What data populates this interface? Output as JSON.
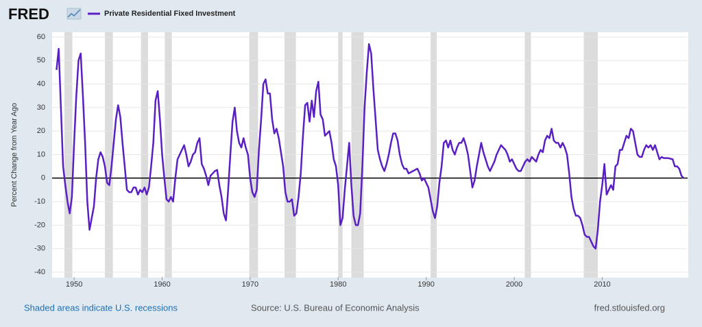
{
  "branding": {
    "logo": "FRED",
    "note": "Shaded areas indicate U.S. recessions",
    "source": "Source: U.S. Bureau of Economic Analysis",
    "url": "fred.stlouisfed.org"
  },
  "chart_data": {
    "type": "line",
    "ylabel": "Percent Change from Year Ago",
    "xlim": [
      1947.5,
      2019.7
    ],
    "xticks": [
      1950,
      1960,
      1970,
      1980,
      1990,
      2000,
      2010
    ],
    "ylim": [
      -40,
      60
    ],
    "yticks": [
      -40,
      -30,
      -20,
      -10,
      0,
      10,
      20,
      30,
      40,
      50,
      60
    ],
    "grid": true,
    "recessions": [
      [
        1948.9,
        1949.8
      ],
      [
        1953.5,
        1954.4
      ],
      [
        1957.6,
        1958.4
      ],
      [
        1960.3,
        1961.1
      ],
      [
        1969.9,
        1970.9
      ],
      [
        1973.9,
        1975.2
      ],
      [
        1980.0,
        1980.5
      ],
      [
        1981.5,
        1982.9
      ],
      [
        1990.5,
        1991.2
      ],
      [
        2001.2,
        2001.9
      ],
      [
        2007.9,
        2009.5
      ]
    ],
    "x": [
      1948.0,
      1948.25,
      1948.5,
      1948.75,
      1949.0,
      1949.25,
      1949.5,
      1949.75,
      1950.0,
      1950.25,
      1950.5,
      1950.75,
      1951.0,
      1951.25,
      1951.5,
      1951.75,
      1952.0,
      1952.25,
      1952.5,
      1952.75,
      1953.0,
      1953.25,
      1953.5,
      1953.75,
      1954.0,
      1954.25,
      1954.5,
      1954.75,
      1955.0,
      1955.25,
      1955.5,
      1955.75,
      1956.0,
      1956.25,
      1956.5,
      1956.75,
      1957.0,
      1957.25,
      1957.5,
      1957.75,
      1958.0,
      1958.25,
      1958.5,
      1958.75,
      1959.0,
      1959.25,
      1959.5,
      1959.75,
      1960.0,
      1960.25,
      1960.5,
      1960.75,
      1961.0,
      1961.25,
      1961.5,
      1961.75,
      1962.0,
      1962.25,
      1962.5,
      1962.75,
      1963.0,
      1963.25,
      1963.5,
      1963.75,
      1964.0,
      1964.25,
      1964.5,
      1964.75,
      1965.0,
      1965.25,
      1965.5,
      1965.75,
      1966.0,
      1966.25,
      1966.5,
      1966.75,
      1967.0,
      1967.25,
      1967.5,
      1967.75,
      1968.0,
      1968.25,
      1968.5,
      1968.75,
      1969.0,
      1969.25,
      1969.5,
      1969.75,
      1970.0,
      1970.25,
      1970.5,
      1970.75,
      1971.0,
      1971.25,
      1971.5,
      1971.75,
      1972.0,
      1972.25,
      1972.5,
      1972.75,
      1973.0,
      1973.25,
      1973.5,
      1973.75,
      1974.0,
      1974.25,
      1974.5,
      1974.75,
      1975.0,
      1975.25,
      1975.5,
      1975.75,
      1976.0,
      1976.25,
      1976.5,
      1976.75,
      1977.0,
      1977.25,
      1977.5,
      1977.75,
      1978.0,
      1978.25,
      1978.5,
      1978.75,
      1979.0,
      1979.25,
      1979.5,
      1979.75,
      1980.0,
      1980.25,
      1980.5,
      1980.75,
      1981.0,
      1981.25,
      1981.5,
      1981.75,
      1982.0,
      1982.25,
      1982.5,
      1982.75,
      1983.0,
      1983.25,
      1983.5,
      1983.75,
      1984.0,
      1984.25,
      1984.5,
      1984.75,
      1985.0,
      1985.25,
      1985.5,
      1985.75,
      1986.0,
      1986.25,
      1986.5,
      1986.75,
      1987.0,
      1987.25,
      1987.5,
      1987.75,
      1988.0,
      1988.5,
      1989.0,
      1989.25,
      1989.5,
      1989.75,
      1990.0,
      1990.25,
      1990.5,
      1990.75,
      1991.0,
      1991.25,
      1991.5,
      1991.75,
      1992.0,
      1992.25,
      1992.5,
      1992.75,
      1993.0,
      1993.25,
      1993.5,
      1993.75,
      1994.0,
      1994.25,
      1994.5,
      1994.75,
      1995.0,
      1995.25,
      1995.5,
      1995.75,
      1996.0,
      1996.25,
      1996.5,
      1996.75,
      1997.0,
      1997.25,
      1997.5,
      1997.75,
      1998.0,
      1998.25,
      1998.5,
      1998.75,
      1999.0,
      1999.25,
      1999.5,
      1999.75,
      2000.0,
      2000.25,
      2000.5,
      2000.75,
      2001.0,
      2001.25,
      2001.5,
      2001.75,
      2002.0,
      2002.25,
      2002.5,
      2002.75,
      2003.0,
      2003.25,
      2003.5,
      2003.75,
      2004.0,
      2004.25,
      2004.5,
      2004.75,
      2005.0,
      2005.25,
      2005.5,
      2005.75,
      2006.0,
      2006.25,
      2006.5,
      2006.75,
      2007.0,
      2007.25,
      2007.5,
      2007.75,
      2008.0,
      2008.25,
      2008.5,
      2008.75,
      2009.0,
      2009.25,
      2009.5,
      2009.75,
      2010.0,
      2010.25,
      2010.5,
      2010.75,
      2011.0,
      2011.25,
      2011.5,
      2011.75,
      2012.0,
      2012.25,
      2012.5,
      2012.75,
      2013.0,
      2013.25,
      2013.5,
      2013.75,
      2014.0,
      2014.25,
      2014.5,
      2014.75,
      2015.0,
      2015.25,
      2015.5,
      2015.75,
      2016.0,
      2016.25,
      2016.5,
      2016.75,
      2017.0,
      2017.5,
      2018.0,
      2018.25,
      2018.5,
      2018.75,
      2019.0,
      2019.25
    ],
    "series": [
      {
        "name": "Private Residential Fixed Investment",
        "color": "#5a1fc2",
        "values": [
          46,
          55,
          30,
          5,
          -3,
          -10,
          -15,
          -8,
          15,
          35,
          50,
          53,
          35,
          15,
          -10,
          -22,
          -17,
          -12,
          0,
          8,
          11,
          9,
          5,
          -2,
          -3,
          5,
          15,
          25,
          31,
          26,
          15,
          5,
          -5,
          -6,
          -6,
          -4,
          -4,
          -7,
          -5,
          -6,
          -4,
          -7,
          -4,
          5,
          15,
          33,
          37,
          25,
          10,
          0,
          -9,
          -10,
          -8,
          -10,
          0,
          8,
          10,
          12,
          14,
          10,
          5,
          7,
          10,
          11,
          15,
          17,
          6,
          4,
          1,
          -3,
          1,
          2,
          3,
          3.5,
          -3,
          -8,
          -15,
          -18,
          -5,
          10,
          24,
          30,
          20,
          15,
          13,
          17,
          13,
          10,
          0,
          -6,
          -8,
          -5,
          12,
          25,
          40,
          42,
          36,
          36,
          25,
          19,
          21,
          17,
          11,
          5,
          -6,
          -10,
          -10,
          -9,
          -16,
          -15,
          -8,
          2,
          18,
          31,
          32,
          24,
          33,
          26,
          37,
          41,
          27,
          25,
          18,
          19,
          20,
          15,
          8,
          5,
          -3,
          -20,
          -17,
          -5,
          5,
          15,
          -3,
          -16,
          -20,
          -20,
          -15,
          5,
          30,
          45,
          57,
          53,
          38,
          25,
          12,
          8,
          5,
          3,
          6,
          10,
          15,
          19,
          19,
          16,
          10,
          6,
          4,
          4,
          2,
          3,
          4,
          2,
          -1,
          0,
          -2,
          -4,
          -9,
          -14,
          -17,
          -12,
          -2,
          5,
          15,
          16,
          13,
          16,
          12,
          10,
          13,
          15,
          15,
          17,
          14,
          10,
          3,
          -4,
          -1,
          5,
          10,
          15,
          11,
          8,
          5,
          3,
          5,
          7,
          10,
          12,
          14,
          13,
          12,
          10,
          7,
          8,
          6,
          4,
          3,
          3,
          5,
          7,
          8,
          7,
          9,
          8,
          7,
          10,
          12,
          11,
          16,
          18,
          17,
          21,
          16,
          15,
          15,
          13,
          15,
          13,
          10,
          2,
          -8,
          -13,
          -16,
          -16,
          -17,
          -20,
          -24,
          -25,
          -25,
          -27,
          -29,
          -30,
          -22,
          -10,
          -3,
          6,
          -7,
          -5,
          -3,
          -5,
          5,
          6,
          12,
          12,
          15,
          18,
          17,
          21,
          20,
          15,
          10,
          9,
          9,
          12,
          14,
          13,
          14,
          12,
          14,
          11,
          8,
          9,
          8.5,
          8.5,
          8,
          5,
          5,
          4,
          1,
          0
        ]
      }
    ]
  }
}
